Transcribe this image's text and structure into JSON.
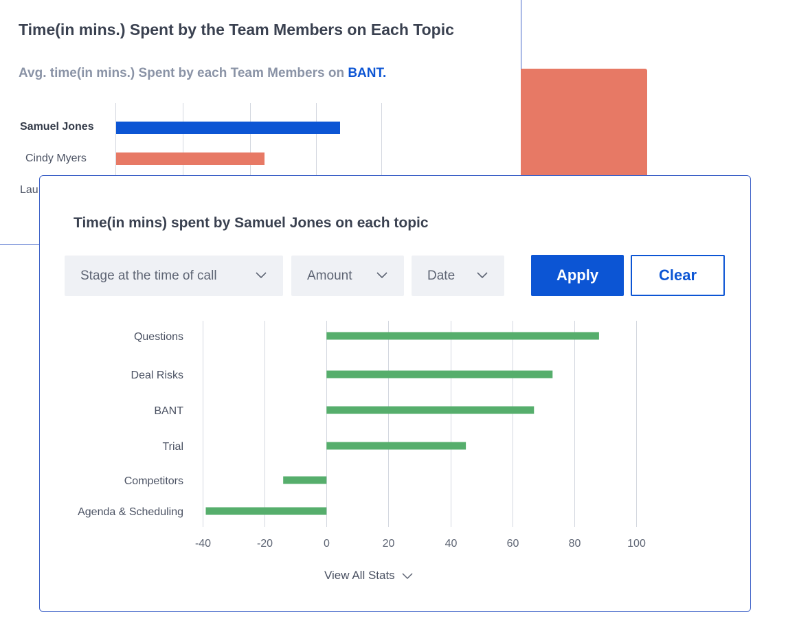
{
  "background_panel": {
    "title": "Time(in mins.) Spent by the Team Members on Each Topic",
    "subtitle_prefix": "Avg. time(in mins.) Spent by each Team Members on",
    "subtitle_topic": "BANT.",
    "members": [
      {
        "name": "Samuel Jones",
        "color": "#0c55d4"
      },
      {
        "name": "Cindy Myers",
        "color": "#e77965"
      },
      {
        "name": "Lau"
      }
    ]
  },
  "modal": {
    "title": "Time(in mins) spent by Samuel Jones on each topic",
    "filters": [
      {
        "label": "Stage at the time of call"
      },
      {
        "label": "Amount"
      },
      {
        "label": "Date"
      }
    ],
    "apply_label": "Apply",
    "clear_label": "Clear",
    "view_all_label": "View All Stats"
  },
  "colors": {
    "primary": "#0c55d4",
    "coral": "#e77965",
    "green": "#56ae6c",
    "border": "#3f63c8"
  },
  "chart_data": {
    "type": "bar",
    "orientation": "horizontal",
    "categories": [
      "Questions",
      "Deal Risks",
      "BANT",
      "Trial",
      "Competitors",
      "Agenda & Scheduling"
    ],
    "values": [
      88,
      73,
      67,
      45,
      -14,
      -39
    ],
    "xlim": [
      -40,
      100
    ],
    "xticks": [
      "-40",
      "-20",
      "0",
      "20",
      "40",
      "60",
      "80",
      "100"
    ],
    "grid": true,
    "series_color": "#56ae6c"
  }
}
